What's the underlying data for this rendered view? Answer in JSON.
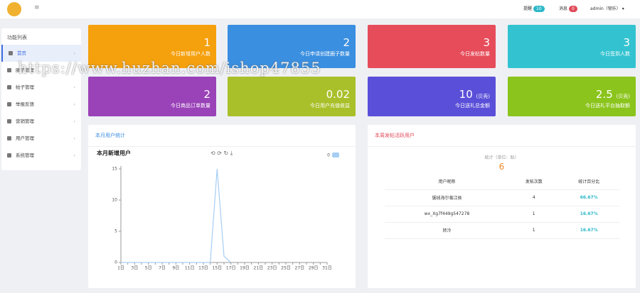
{
  "topbar": {
    "reminders_label": "提醒",
    "reminders_count": 10,
    "messages_label": "消息",
    "messages_count": 0,
    "user": "admin（韧乐）"
  },
  "watermark": "https://www.huzhan.com/ishop47855",
  "sidebar": {
    "title": "功能列表",
    "items": [
      "首页",
      "圈子管理",
      "帖子管理",
      "举报反馈",
      "营销管理",
      "用户管理",
      "系统管理"
    ]
  },
  "cards": [
    {
      "value": 1,
      "label": "今日新增用户人数"
    },
    {
      "value": 2,
      "label": "今日申请创建圈子数量"
    },
    {
      "value": 3,
      "label": "今日发帖数量"
    },
    {
      "value": 3,
      "label": "今日签到人数"
    },
    {
      "value": 2,
      "label": "今日商品订单数量"
    },
    {
      "value": 0.02,
      "label": "今日用户充值收益"
    },
    {
      "value": 10,
      "unit": "(贝壳)",
      "label": "今日送礼总金额"
    },
    {
      "value": 2.5,
      "unit": "(贝壳)",
      "label": "今日送礼平台抽取额"
    }
  ],
  "user_panel": {
    "header": "本月用户统计"
  },
  "chart_data": {
    "type": "line",
    "title": "本月新增用户",
    "categories": [
      "1日",
      null,
      "3日",
      null,
      "5日",
      null,
      "7日",
      null,
      "9日",
      null,
      "11日",
      null,
      "13日",
      null,
      "15日",
      null,
      "17日",
      null,
      "19日",
      null,
      "21日",
      null,
      "23日",
      null,
      "25日",
      null,
      "27日",
      null,
      "29日",
      null,
      "31日"
    ],
    "series": [
      {
        "name": "0",
        "color": "#a6cdf3",
        "values": [
          0,
          0,
          0,
          0,
          0,
          0,
          0,
          0,
          0,
          0,
          0,
          0,
          0,
          0,
          15,
          1,
          0,
          null,
          null,
          null,
          null,
          null,
          null,
          null,
          null,
          null,
          null,
          null,
          null,
          null,
          null
        ]
      }
    ],
    "ylim": [
      0,
      15
    ],
    "yticks": [
      0,
      5,
      10,
      15
    ]
  },
  "active_panel": {
    "header": "本周发帖活跃用户",
    "stat_label": "统计（单位：贴）",
    "total": 6,
    "columns": [
      "用户昵称",
      "发帖次数",
      "统计百分比"
    ],
    "rows": [
      [
        "锯线海尔临江侯",
        4,
        "66.67%"
      ],
      [
        "wx_Xg7f449g547278",
        1,
        "16.67%"
      ],
      [
        "转冷",
        1,
        "16.67%"
      ]
    ]
  }
}
